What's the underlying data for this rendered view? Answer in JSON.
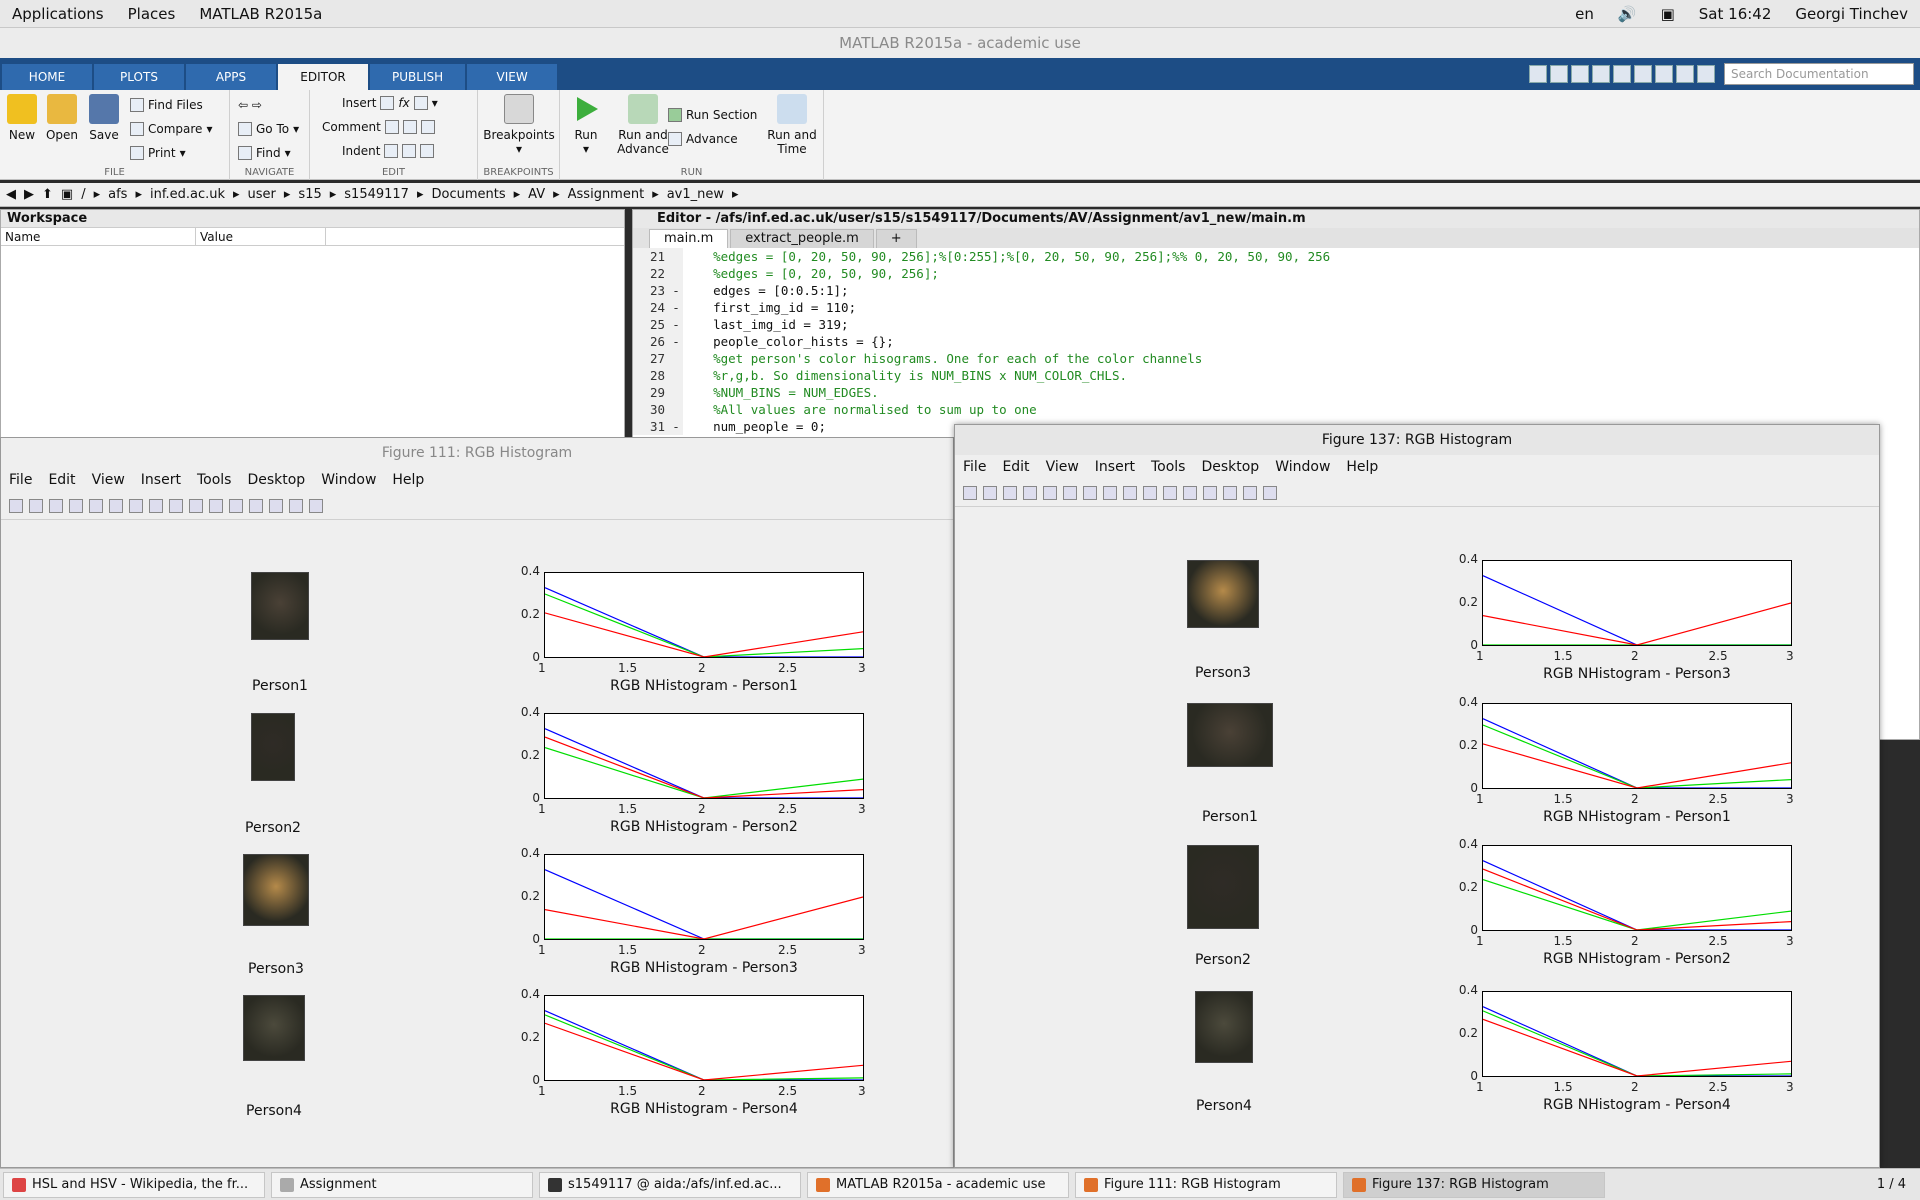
{
  "topbar": {
    "applications": "Applications",
    "places": "Places",
    "app": "MATLAB R2015a",
    "lang": "en",
    "clock": "Sat 16:42",
    "user": "Georgi Tinchev"
  },
  "window_title": "MATLAB R2015a - academic use",
  "tabs": [
    "HOME",
    "PLOTS",
    "APPS",
    "EDITOR",
    "PUBLISH",
    "VIEW"
  ],
  "active_tab": "EDITOR",
  "search_placeholder": "Search Documentation",
  "ribbon": {
    "file": {
      "label": "FILE",
      "new": "New",
      "open": "Open",
      "save": "Save",
      "find_files": "Find Files",
      "compare": "Compare",
      "print": "Print"
    },
    "navigate": {
      "label": "NAVIGATE",
      "goto": "Go To",
      "find": "Find"
    },
    "edit": {
      "label": "EDIT",
      "insert": "Insert",
      "comment": "Comment",
      "indent": "Indent"
    },
    "breakpoints": {
      "label": "BREAKPOINTS",
      "btn": "Breakpoints"
    },
    "run": {
      "label": "RUN",
      "run": "Run",
      "run_advance": "Run and Advance",
      "run_section": "Run Section",
      "advance": "Advance",
      "run_time": "Run and Time"
    }
  },
  "path": [
    "/",
    "afs",
    "inf.ed.ac.uk",
    "user",
    "s15",
    "s1549117",
    "Documents",
    "AV",
    "Assignment",
    "av1_new"
  ],
  "workspace": {
    "title": "Workspace",
    "col_name": "Name",
    "col_value": "Value"
  },
  "editor": {
    "title": "Editor - /afs/inf.ed.ac.uk/user/s15/s1549117/Documents/AV/Assignment/av1_new/main.m",
    "tabs": [
      "main.m",
      "extract_people.m",
      "+"
    ],
    "lines": [
      {
        "n": "21",
        "m": "",
        "t": "    %edges = [0, 20, 50, 90, 256];%[0:255];%[0, 20, 50, 90, 256];%% 0, 20, 50, 90, 256",
        "c": "cm"
      },
      {
        "n": "22",
        "m": "",
        "t": "    %edges = [0, 20, 50, 90, 256];",
        "c": "cm"
      },
      {
        "n": "23",
        "m": "-",
        "t": "    edges = [0:0.5:1];",
        "c": ""
      },
      {
        "n": "24",
        "m": "-",
        "t": "    first_img_id = 110;",
        "c": ""
      },
      {
        "n": "25",
        "m": "-",
        "t": "    last_img_id = 319;",
        "c": ""
      },
      {
        "n": "26",
        "m": "-",
        "t": "    people_color_hists = {};",
        "c": ""
      },
      {
        "n": "27",
        "m": "",
        "t": "    %get person's color hisograms. One for each of the color channels",
        "c": "cm"
      },
      {
        "n": "28",
        "m": "",
        "t": "    %r,g,b. So dimensionality is NUM_BINS x NUM_COLOR_CHLS.",
        "c": "cm"
      },
      {
        "n": "29",
        "m": "",
        "t": "    %NUM_BINS = NUM_EDGES.",
        "c": "cm"
      },
      {
        "n": "30",
        "m": "",
        "t": "    %All values are normalised to sum up to one",
        "c": "cm"
      },
      {
        "n": "31",
        "m": "-",
        "t": "    num_people = 0;",
        "c": ""
      }
    ]
  },
  "figure_menu": [
    "File",
    "Edit",
    "View",
    "Insert",
    "Tools",
    "Desktop",
    "Window",
    "Help"
  ],
  "fig111": {
    "title": "Figure 111: RGB Histogram",
    "persons": [
      "Person1",
      "Person2",
      "Person3",
      "Person4"
    ],
    "xlabels": [
      "RGB NHistogram -  Person1",
      "RGB NHistogram -  Person2",
      "RGB NHistogram -  Person3",
      "RGB NHistogram -  Person4"
    ]
  },
  "fig137": {
    "title": "Figure 137: RGB Histogram",
    "persons": [
      "Person3",
      "Person1",
      "Person2",
      "Person4"
    ],
    "xlabels": [
      "RGB NHistogram -  Person3",
      "RGB NHistogram -  Person1",
      "RGB NHistogram -  Person2",
      "RGB NHistogram -  Person4"
    ]
  },
  "chart_data": [
    {
      "type": "line",
      "person": "Person1",
      "x": [
        1,
        2,
        3
      ],
      "ylim": [
        0,
        0.4
      ],
      "xlim": [
        1,
        3
      ],
      "xticks": [
        "1",
        "1.5",
        "2",
        "2.5",
        "3"
      ],
      "yticks": [
        "0",
        "0.2",
        "0.4"
      ],
      "series": [
        {
          "color": "#0000ff",
          "values": [
            0.33,
            0,
            0
          ]
        },
        {
          "color": "#00dd00",
          "values": [
            0.3,
            0,
            0.04
          ]
        },
        {
          "color": "#ff0000",
          "values": [
            0.21,
            0,
            0.12
          ]
        }
      ]
    },
    {
      "type": "line",
      "person": "Person2",
      "x": [
        1,
        2,
        3
      ],
      "ylim": [
        0,
        0.4
      ],
      "xlim": [
        1,
        3
      ],
      "xticks": [
        "1",
        "1.5",
        "2",
        "2.5",
        "3"
      ],
      "yticks": [
        "0",
        "0.2",
        "0.4"
      ],
      "series": [
        {
          "color": "#0000ff",
          "values": [
            0.33,
            0,
            0
          ]
        },
        {
          "color": "#00dd00",
          "values": [
            0.24,
            0,
            0.09
          ]
        },
        {
          "color": "#ff0000",
          "values": [
            0.29,
            0,
            0.04
          ]
        }
      ]
    },
    {
      "type": "line",
      "person": "Person3",
      "x": [
        1,
        2,
        3
      ],
      "ylim": [
        0,
        0.4
      ],
      "xlim": [
        1,
        3
      ],
      "xticks": [
        "1",
        "1.5",
        "2",
        "2.5",
        "3"
      ],
      "yticks": [
        "0",
        "0.2",
        "0.4"
      ],
      "series": [
        {
          "color": "#0000ff",
          "values": [
            0.33,
            0,
            0
          ]
        },
        {
          "color": "#00dd00",
          "values": [
            0,
            0,
            0
          ]
        },
        {
          "color": "#ff0000",
          "values": [
            0.14,
            0,
            0.2
          ]
        }
      ]
    },
    {
      "type": "line",
      "person": "Person4",
      "x": [
        1,
        2,
        3
      ],
      "ylim": [
        0,
        0.4
      ],
      "xlim": [
        1,
        3
      ],
      "xticks": [
        "1",
        "1.5",
        "2",
        "2.5",
        "3"
      ],
      "yticks": [
        "0",
        "0.2",
        "0.4"
      ],
      "series": [
        {
          "color": "#0000ff",
          "values": [
            0.33,
            0,
            0
          ]
        },
        {
          "color": "#00dd00",
          "values": [
            0.31,
            0,
            0.01
          ]
        },
        {
          "color": "#ff0000",
          "values": [
            0.27,
            0,
            0.07
          ]
        }
      ]
    }
  ],
  "taskbar": [
    "HSL and HSV - Wikipedia, the fr...",
    "Assignment",
    "s1549117 @ aida:/afs/inf.ed.ac...",
    "MATLAB R2015a - academic use",
    "Figure 111: RGB Histogram",
    "Figure 137: RGB Histogram"
  ],
  "workspace_count": "1 / 4"
}
